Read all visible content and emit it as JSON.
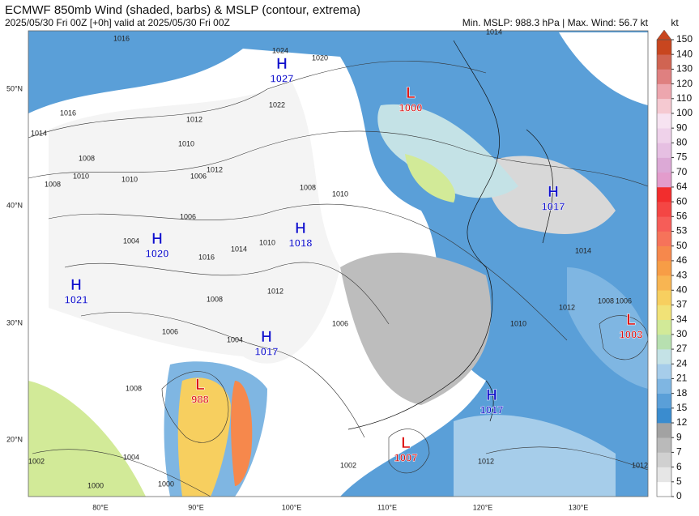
{
  "header": {
    "title": "ECMWF 850mb Wind (shaded, barbs) & MSLP (contour, extrema)",
    "subtitle": "2025/05/30 Fri 00Z [+0h] valid at 2025/05/30 Fri 00Z",
    "stats": "Min. MSLP: 988.3 hPa | Max. Wind: 56.7 kt"
  },
  "map": {
    "lat_labels": [
      "50°N",
      "40°N",
      "30°N",
      "20°N"
    ],
    "lon_labels": [
      "80°E",
      "90°E",
      "100°E",
      "110°E",
      "120°E",
      "130°E"
    ],
    "centers": [
      {
        "symbol": "H",
        "value": "1027"
      },
      {
        "symbol": "L",
        "value": "1000"
      },
      {
        "symbol": "H",
        "value": "1017"
      },
      {
        "symbol": "H",
        "value": "1018"
      },
      {
        "symbol": "H",
        "value": "1020"
      },
      {
        "symbol": "H",
        "value": "1021"
      },
      {
        "symbol": "H",
        "value": "1017"
      },
      {
        "symbol": "L",
        "value": "1003"
      },
      {
        "symbol": "L",
        "value": "988"
      },
      {
        "symbol": "H",
        "value": "1017"
      },
      {
        "symbol": "L",
        "value": "1007"
      }
    ],
    "contour_labels": [
      "1016",
      "1014",
      "1016",
      "1008",
      "1010",
      "1008",
      "1012",
      "1010",
      "1006",
      "1024",
      "1022",
      "1020",
      "1008",
      "1010",
      "1004",
      "1006",
      "1008",
      "1010",
      "1012",
      "1014",
      "1016",
      "1012",
      "1010",
      "1004",
      "1006",
      "1008",
      "1006",
      "1000",
      "1002",
      "1000",
      "1004",
      "1012",
      "1014",
      "1010",
      "1008",
      "1006",
      "1012",
      "1014",
      "1012",
      "1002"
    ]
  },
  "colorbar": {
    "unit": "kt",
    "ticks": [
      0,
      5,
      6,
      7,
      9,
      12,
      15,
      18,
      21,
      24,
      27,
      30,
      34,
      37,
      40,
      43,
      46,
      50,
      53,
      56,
      60,
      64,
      70,
      75,
      80,
      90,
      100,
      110,
      120,
      130,
      140,
      150
    ],
    "colors": [
      "#ffffff",
      "#e6e6e6",
      "#d0d0d0",
      "#bababa",
      "#a2a2a2",
      "#3a8ccf",
      "#5a9fd8",
      "#7fb6e2",
      "#a6cdea",
      "#c4e2e6",
      "#b7e0b0",
      "#d2ea98",
      "#f1e277",
      "#f7cf5f",
      "#f8b552",
      "#f79d46",
      "#f6884c",
      "#f6735a",
      "#f65d58",
      "#f44644",
      "#f22d2d",
      "#e39ccc",
      "#dca9d6",
      "#e6bfe2",
      "#efd2ea",
      "#f7e3f1",
      "#f5c9d1",
      "#eda6ae",
      "#df8080",
      "#d06452",
      "#c8461f"
    ]
  }
}
